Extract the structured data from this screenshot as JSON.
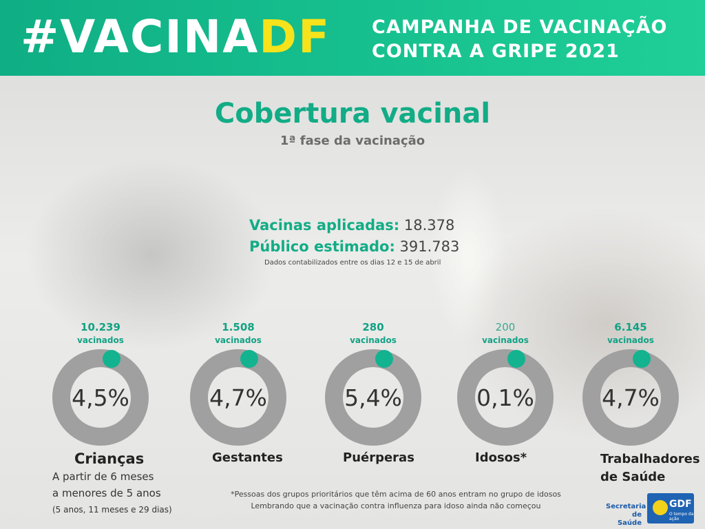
{
  "header": {
    "hashtag_main": "#VACINA",
    "hashtag_accent": "DF",
    "campaign_line1": "CAMPANHA DE VACINAÇÃO",
    "campaign_line2": "CONTRA A GRIPE 2021"
  },
  "title": "Cobertura vacinal",
  "subtitle": "1ª fase da vacinação",
  "stats": {
    "applied_label": "Vacinas aplicadas:",
    "applied_value": "18.378",
    "estimated_label": "Público estimado:",
    "estimated_value": "391.783",
    "note": "Dados contabilizados entre os dias 12 e 15 de abril"
  },
  "colors": {
    "accent": "#12ac86",
    "ring": "#a0a0a0",
    "dot": "#13b38f"
  },
  "groups": [
    {
      "count": "10.239",
      "unit": "vacinados",
      "percent": "4,5%",
      "name": "Crianças"
    },
    {
      "count": "1.508",
      "unit": "vacinados",
      "percent": "4,7%",
      "name": "Gestantes"
    },
    {
      "count": "280",
      "unit": "vacinados",
      "percent": "5,4%",
      "name": "Puérperas"
    },
    {
      "count": "200",
      "unit": "vacinados",
      "percent": "0,1%",
      "name": "Idosos*"
    },
    {
      "count": "6.145",
      "unit": "vacinados",
      "percent": "4,7%",
      "name_line1": "Trabalhadores",
      "name_line2": "de Saúde"
    }
  ],
  "children_desc": {
    "line1": "A partir de 6 meses",
    "line2": "a menores de 5 anos",
    "line3": "(5 anos, 11 meses e 29 dias)"
  },
  "footnote": {
    "line1": "*Pessoas dos grupos prioritários que têm acima de 60 anos entram no grupo de idosos",
    "line2": "Lembrando que a vacinação contra influenza para idoso ainda não começou"
  },
  "logos": {
    "secretaria_line1": "Secretaria",
    "secretaria_line2": "de Saúde",
    "gdf": "GDF",
    "gdf_tagline": "O tempo da ação"
  }
}
